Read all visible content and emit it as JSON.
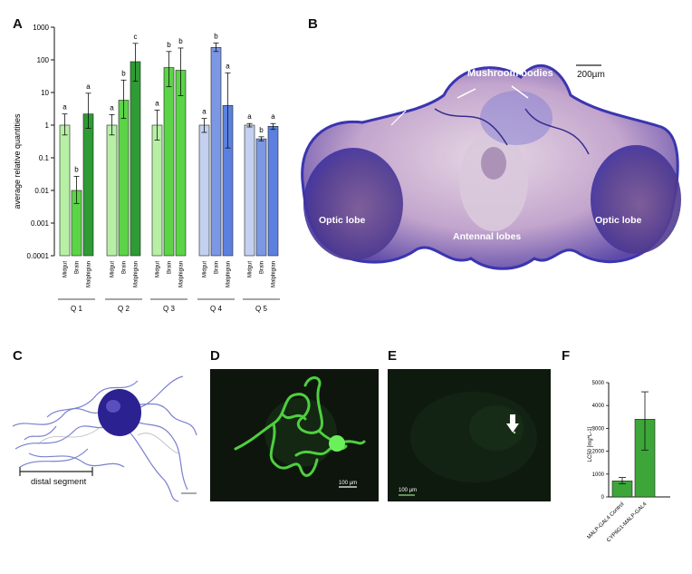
{
  "panels": {
    "a": "A",
    "b": "B",
    "c": "C",
    "d": "D",
    "e": "E",
    "f": "F"
  },
  "chart_data": [
    {
      "type": "bar",
      "panel": "A",
      "ylabel": "average relative quantities",
      "yscale": "log",
      "ylim": [
        0.0001,
        1000
      ],
      "yticks": [
        "0.0001",
        "0.001",
        "0.01",
        "0.1",
        "1",
        "10",
        "100",
        "1000"
      ],
      "tissues": [
        "Midgut",
        "Brain",
        "Malphigian"
      ],
      "groups": [
        {
          "name": "Q 1",
          "values": [
            1,
            0.01,
            2.2
          ],
          "err_low": [
            0.5,
            0.004,
            0.8
          ],
          "err_high": [
            2.2,
            0.027,
            9.5
          ],
          "letters": [
            "a",
            "b",
            "a"
          ],
          "colors": [
            "#b7f0a5",
            "#5bd447",
            "#2e9b34"
          ]
        },
        {
          "name": "Q 2",
          "values": [
            1,
            5.8,
            88
          ],
          "err_low": [
            0.5,
            1.6,
            22
          ],
          "err_high": [
            2.1,
            24,
            320
          ],
          "letters": [
            "a",
            "b",
            "c"
          ],
          "colors": [
            "#b7f0a5",
            "#5bd447",
            "#2e9b34"
          ]
        },
        {
          "name": "Q 3",
          "values": [
            1,
            58,
            48
          ],
          "err_low": [
            0.35,
            15,
            8
          ],
          "err_high": [
            2.9,
            180,
            230
          ],
          "letters": [
            "a",
            "b",
            "b"
          ],
          "colors": [
            "#b7f0a5",
            "#5bd447",
            "#5bd447"
          ]
        },
        {
          "name": "Q 4",
          "values": [
            1,
            240,
            4
          ],
          "err_low": [
            0.6,
            180,
            0.2
          ],
          "err_high": [
            1.6,
            330,
            40
          ],
          "letters": [
            "a",
            "b",
            "a"
          ],
          "colors": [
            "#c4d0ef",
            "#7c98e4",
            "#5b80e0"
          ]
        },
        {
          "name": "Q 5",
          "values": [
            1,
            0.38,
            0.92
          ],
          "err_low": [
            0.88,
            0.33,
            0.74
          ],
          "err_high": [
            1.12,
            0.44,
            1.12
          ],
          "letters": [
            "a",
            "b",
            "a"
          ],
          "colors": [
            "#c4d0ef",
            "#7c98e4",
            "#5b80e0"
          ]
        }
      ]
    },
    {
      "type": "bar",
      "panel": "F",
      "ylabel": "LC50 [mg*L-1]",
      "ylim": [
        0,
        5000
      ],
      "yticks": [
        "0",
        "1000",
        "2000",
        "3000",
        "4000",
        "5000"
      ],
      "categories": [
        "MALP-GAL4 Control",
        "CYP6G1-MALP-GAL4"
      ],
      "values": [
        700,
        3400
      ],
      "err_low": [
        580,
        2050
      ],
      "err_high": [
        850,
        4600
      ],
      "color": "#3ca638"
    }
  ],
  "brain": {
    "mushroom_bodies": "Mushroom bodies",
    "scale": "200µm",
    "optic_lobe_left": "Optic lobe",
    "optic_lobe_right": "Optic lobe",
    "antennal_lobes": "Antennal lobes"
  },
  "micro_c": {
    "label": "distal segment"
  },
  "micro_d": {
    "scale": "100 µm"
  },
  "micro_e": {
    "scale": "100 µm"
  }
}
